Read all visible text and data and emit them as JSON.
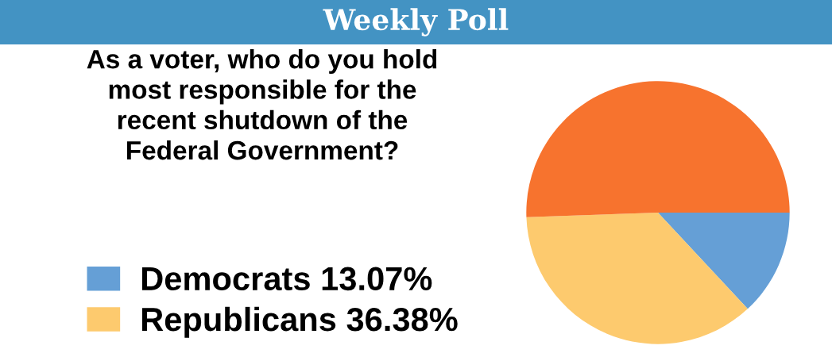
{
  "chart_data": {
    "type": "pie",
    "title": "Weekly Poll",
    "subtitle": "As a voter, who do you hold most responsible for the recent shutdown of the Federal Government?",
    "categories": [
      "Democrats",
      "Republicans",
      null
    ],
    "values": [
      13.07,
      36.38,
      50.55
    ],
    "value_labels": [
      "13.07%",
      "36.38%",
      null
    ],
    "colors": [
      "#659fd6",
      "#fdca6e",
      "#f7732e"
    ],
    "legend": "left"
  }
}
